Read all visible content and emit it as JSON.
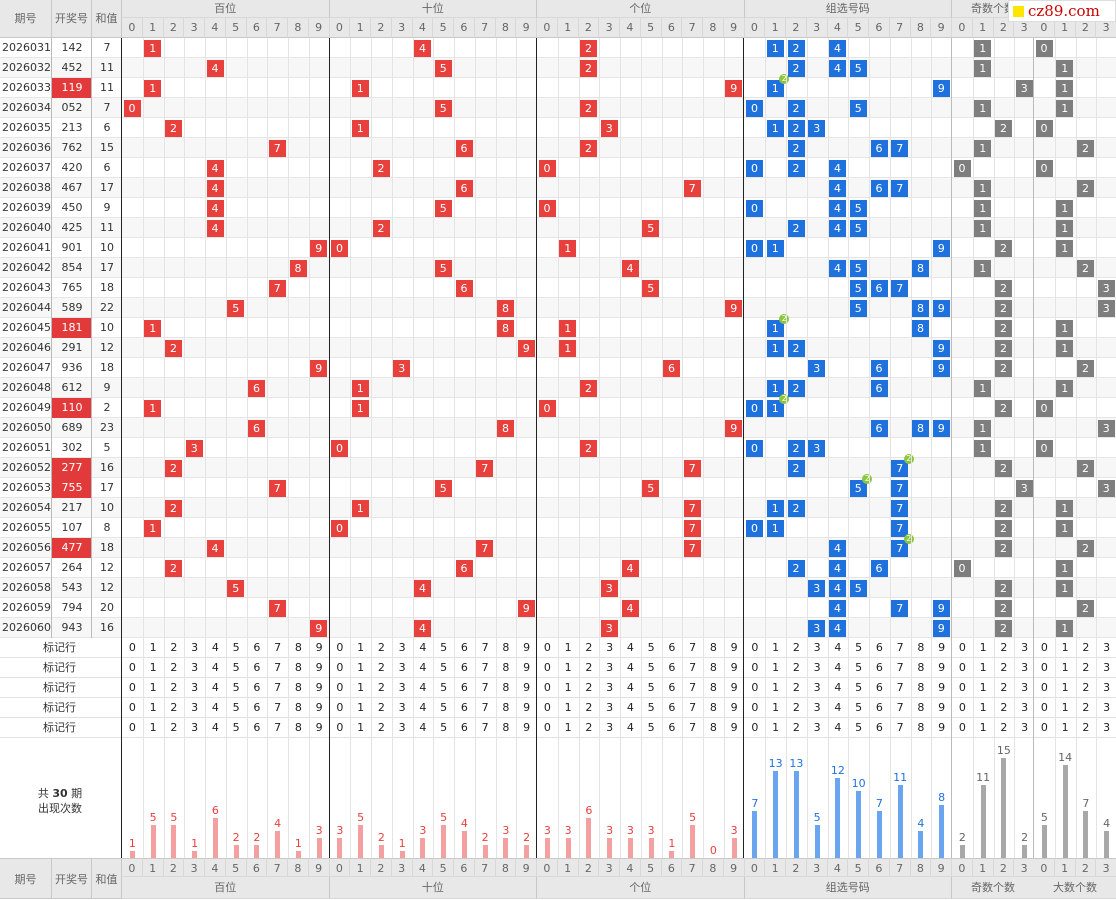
{
  "site_logo": "cz89.com",
  "header": {
    "issue": "期号",
    "number": "开奖号",
    "sum": "和值",
    "groups": [
      {
        "name": "百位",
        "digits": [
          "0",
          "1",
          "2",
          "3",
          "4",
          "5",
          "6",
          "7",
          "8",
          "9"
        ]
      },
      {
        "name": "十位",
        "digits": [
          "0",
          "1",
          "2",
          "3",
          "4",
          "5",
          "6",
          "7",
          "8",
          "9"
        ]
      },
      {
        "name": "个位",
        "digits": [
          "0",
          "1",
          "2",
          "3",
          "4",
          "5",
          "6",
          "7",
          "8",
          "9"
        ]
      },
      {
        "name": "组选号码",
        "digits": [
          "0",
          "1",
          "2",
          "3",
          "4",
          "5",
          "6",
          "7",
          "8",
          "9"
        ]
      },
      {
        "name": "奇数个数",
        "digits": [
          "0",
          "1",
          "2",
          "3"
        ]
      },
      {
        "name": "大数个数",
        "digits": [
          "0",
          "1",
          "2",
          "3"
        ]
      }
    ]
  },
  "rows": [
    {
      "issue": "2026031",
      "number": "142",
      "sum": "7",
      "highlight": false,
      "bai": 1,
      "shi": 4,
      "ge": 2,
      "zu": [
        1,
        2,
        4
      ],
      "repeat": [],
      "odd": 1,
      "big": 0
    },
    {
      "issue": "2026032",
      "number": "452",
      "sum": "11",
      "highlight": false,
      "bai": 4,
      "shi": 5,
      "ge": 2,
      "zu": [
        2,
        4,
        5
      ],
      "repeat": [],
      "odd": 1,
      "big": 1
    },
    {
      "issue": "2026033",
      "number": "119",
      "sum": "11",
      "highlight": true,
      "bai": 1,
      "shi": 1,
      "ge": 9,
      "zu": [
        1,
        9
      ],
      "repeat": [
        1
      ],
      "odd": 3,
      "big": 1
    },
    {
      "issue": "2026034",
      "number": "052",
      "sum": "7",
      "highlight": false,
      "bai": 0,
      "shi": 5,
      "ge": 2,
      "zu": [
        0,
        2,
        5
      ],
      "repeat": [],
      "odd": 1,
      "big": 1
    },
    {
      "issue": "2026035",
      "number": "213",
      "sum": "6",
      "highlight": false,
      "bai": 2,
      "shi": 1,
      "ge": 3,
      "zu": [
        1,
        2,
        3
      ],
      "repeat": [],
      "odd": 2,
      "big": 0
    },
    {
      "issue": "2026036",
      "number": "762",
      "sum": "15",
      "highlight": false,
      "bai": 7,
      "shi": 6,
      "ge": 2,
      "zu": [
        2,
        6,
        7
      ],
      "repeat": [],
      "odd": 1,
      "big": 2
    },
    {
      "issue": "2026037",
      "number": "420",
      "sum": "6",
      "highlight": false,
      "bai": 4,
      "shi": 2,
      "ge": 0,
      "zu": [
        0,
        2,
        4
      ],
      "repeat": [],
      "odd": 0,
      "big": 0
    },
    {
      "issue": "2026038",
      "number": "467",
      "sum": "17",
      "highlight": false,
      "bai": 4,
      "shi": 6,
      "ge": 7,
      "zu": [
        4,
        6,
        7
      ],
      "repeat": [],
      "odd": 1,
      "big": 2
    },
    {
      "issue": "2026039",
      "number": "450",
      "sum": "9",
      "highlight": false,
      "bai": 4,
      "shi": 5,
      "ge": 0,
      "zu": [
        0,
        4,
        5
      ],
      "repeat": [],
      "odd": 1,
      "big": 1
    },
    {
      "issue": "2026040",
      "number": "425",
      "sum": "11",
      "highlight": false,
      "bai": 4,
      "shi": 2,
      "ge": 5,
      "zu": [
        2,
        4,
        5
      ],
      "repeat": [],
      "odd": 1,
      "big": 1
    },
    {
      "issue": "2026041",
      "number": "901",
      "sum": "10",
      "highlight": false,
      "bai": 9,
      "shi": 0,
      "ge": 1,
      "zu": [
        0,
        1,
        9
      ],
      "repeat": [],
      "odd": 2,
      "big": 1
    },
    {
      "issue": "2026042",
      "number": "854",
      "sum": "17",
      "highlight": false,
      "bai": 8,
      "shi": 5,
      "ge": 4,
      "zu": [
        4,
        5,
        8
      ],
      "repeat": [],
      "odd": 1,
      "big": 2
    },
    {
      "issue": "2026043",
      "number": "765",
      "sum": "18",
      "highlight": false,
      "bai": 7,
      "shi": 6,
      "ge": 5,
      "zu": [
        5,
        6,
        7
      ],
      "repeat": [],
      "odd": 2,
      "big": 3
    },
    {
      "issue": "2026044",
      "number": "589",
      "sum": "22",
      "highlight": false,
      "bai": 5,
      "shi": 8,
      "ge": 9,
      "zu": [
        5,
        8,
        9
      ],
      "repeat": [],
      "odd": 2,
      "big": 3
    },
    {
      "issue": "2026045",
      "number": "181",
      "sum": "10",
      "highlight": true,
      "bai": 1,
      "shi": 8,
      "ge": 1,
      "zu": [
        1,
        8
      ],
      "repeat": [
        1
      ],
      "odd": 2,
      "big": 1
    },
    {
      "issue": "2026046",
      "number": "291",
      "sum": "12",
      "highlight": false,
      "bai": 2,
      "shi": 9,
      "ge": 1,
      "zu": [
        1,
        2,
        9
      ],
      "repeat": [],
      "odd": 2,
      "big": 1
    },
    {
      "issue": "2026047",
      "number": "936",
      "sum": "18",
      "highlight": false,
      "bai": 9,
      "shi": 3,
      "ge": 6,
      "zu": [
        3,
        6,
        9
      ],
      "repeat": [],
      "odd": 2,
      "big": 2
    },
    {
      "issue": "2026048",
      "number": "612",
      "sum": "9",
      "highlight": false,
      "bai": 6,
      "shi": 1,
      "ge": 2,
      "zu": [
        1,
        2,
        6
      ],
      "repeat": [],
      "odd": 1,
      "big": 1
    },
    {
      "issue": "2026049",
      "number": "110",
      "sum": "2",
      "highlight": true,
      "bai": 1,
      "shi": 1,
      "ge": 0,
      "zu": [
        0,
        1
      ],
      "repeat": [
        1
      ],
      "odd": 2,
      "big": 0
    },
    {
      "issue": "2026050",
      "number": "689",
      "sum": "23",
      "highlight": false,
      "bai": 6,
      "shi": 8,
      "ge": 9,
      "zu": [
        6,
        8,
        9
      ],
      "repeat": [],
      "odd": 1,
      "big": 3
    },
    {
      "issue": "2026051",
      "number": "302",
      "sum": "5",
      "highlight": false,
      "bai": 3,
      "shi": 0,
      "ge": 2,
      "zu": [
        0,
        2,
        3
      ],
      "repeat": [],
      "odd": 1,
      "big": 0
    },
    {
      "issue": "2026052",
      "number": "277",
      "sum": "16",
      "highlight": true,
      "bai": 2,
      "shi": 7,
      "ge": 7,
      "zu": [
        2,
        7
      ],
      "repeat": [
        7
      ],
      "odd": 2,
      "big": 2
    },
    {
      "issue": "2026053",
      "number": "755",
      "sum": "17",
      "highlight": true,
      "bai": 7,
      "shi": 5,
      "ge": 5,
      "zu": [
        5,
        7
      ],
      "repeat": [
        5
      ],
      "odd": 3,
      "big": 3
    },
    {
      "issue": "2026054",
      "number": "217",
      "sum": "10",
      "highlight": false,
      "bai": 2,
      "shi": 1,
      "ge": 7,
      "zu": [
        1,
        2,
        7
      ],
      "repeat": [],
      "odd": 2,
      "big": 1
    },
    {
      "issue": "2026055",
      "number": "107",
      "sum": "8",
      "highlight": false,
      "bai": 1,
      "shi": 0,
      "ge": 7,
      "zu": [
        0,
        1,
        7
      ],
      "repeat": [],
      "odd": 2,
      "big": 1
    },
    {
      "issue": "2026056",
      "number": "477",
      "sum": "18",
      "highlight": true,
      "bai": 4,
      "shi": 7,
      "ge": 7,
      "zu": [
        4,
        7
      ],
      "repeat": [
        7
      ],
      "odd": 2,
      "big": 2
    },
    {
      "issue": "2026057",
      "number": "264",
      "sum": "12",
      "highlight": false,
      "bai": 2,
      "shi": 6,
      "ge": 4,
      "zu": [
        2,
        4,
        6
      ],
      "repeat": [],
      "odd": 0,
      "big": 1
    },
    {
      "issue": "2026058",
      "number": "543",
      "sum": "12",
      "highlight": false,
      "bai": 5,
      "shi": 4,
      "ge": 3,
      "zu": [
        3,
        4,
        5
      ],
      "repeat": [],
      "odd": 2,
      "big": 1
    },
    {
      "issue": "2026059",
      "number": "794",
      "sum": "20",
      "highlight": false,
      "bai": 7,
      "shi": 9,
      "ge": 4,
      "zu": [
        4,
        7,
        9
      ],
      "repeat": [],
      "odd": 2,
      "big": 2
    },
    {
      "issue": "2026060",
      "number": "943",
      "sum": "16",
      "highlight": false,
      "bai": 9,
      "shi": 4,
      "ge": 3,
      "zu": [
        3,
        4,
        9
      ],
      "repeat": [],
      "odd": 2,
      "big": 1
    }
  ],
  "repeat_badge": "2",
  "mark_rows": [
    {
      "label": "标记行"
    },
    {
      "label": "标记行"
    },
    {
      "label": "标记行"
    },
    {
      "label": "标记行"
    },
    {
      "label": "标记行"
    }
  ],
  "summary": {
    "line1_prefix": "共",
    "periods": "30",
    "line1_suffix": "期",
    "line2": "出现次数"
  },
  "counts": {
    "bai": [
      1,
      5,
      5,
      1,
      6,
      2,
      2,
      4,
      1,
      3
    ],
    "shi": [
      3,
      5,
      2,
      1,
      3,
      5,
      4,
      2,
      3,
      2
    ],
    "ge": [
      3,
      3,
      6,
      3,
      3,
      3,
      1,
      5,
      0,
      3
    ],
    "zu": [
      7,
      13,
      13,
      5,
      12,
      10,
      7,
      11,
      4,
      8
    ],
    "odd": [
      2,
      11,
      15,
      2
    ],
    "big": [
      5,
      14,
      7,
      4
    ]
  },
  "colors": {
    "red": "#e8403d",
    "blue": "#1f72de",
    "gray": "#7e7e7e",
    "badge": "#8cc63f",
    "highlight": "#e23a3a",
    "bar_red": "#f4a0a0",
    "bar_blue": "#6aa5ef",
    "bar_gray": "#a8a8a8",
    "count_red": "#e8403d",
    "count_blue": "#1f72de",
    "count_gray": "#666"
  }
}
